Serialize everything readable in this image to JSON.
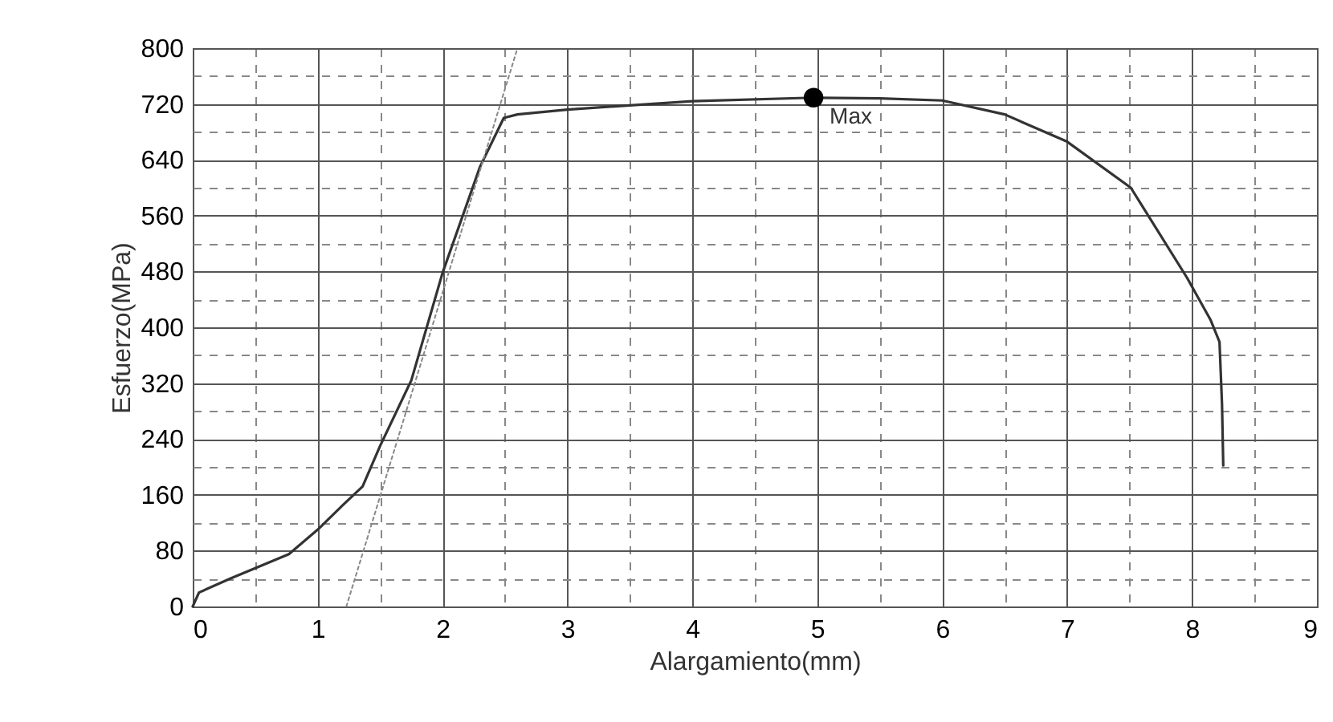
{
  "chart_data": {
    "type": "line",
    "xlabel": "Alargamiento(mm)",
    "ylabel": "Esfuerzo(MPa)",
    "xlim": [
      0,
      9
    ],
    "ylim": [
      0,
      800
    ],
    "xticks": [
      0,
      {
        "value": 0.5,
        "label": null
      },
      1,
      {
        "value": 1.5,
        "label": null
      },
      2,
      {
        "value": 2.5,
        "label": null
      },
      3,
      {
        "value": 3.5,
        "label": null
      },
      4,
      {
        "value": 4.5,
        "label": null
      },
      5,
      {
        "value": 5.5,
        "label": null
      },
      6,
      {
        "value": 6.5,
        "label": null
      },
      7,
      {
        "value": 7.5,
        "label": null
      },
      8,
      {
        "value": 8.5,
        "label": null
      },
      9
    ],
    "yticks": [
      0,
      {
        "value": 40,
        "label": null
      },
      80,
      {
        "value": 120,
        "label": null
      },
      160,
      {
        "value": 200,
        "label": null
      },
      240,
      {
        "value": 280,
        "label": null
      },
      320,
      {
        "value": 360,
        "label": null
      },
      400,
      {
        "value": 440,
        "label": null
      },
      480,
      {
        "value": 520,
        "label": null
      },
      560,
      {
        "value": 600,
        "label": null
      },
      640,
      {
        "value": 680,
        "label": null
      },
      720,
      {
        "value": 760,
        "label": null
      },
      800
    ],
    "grid": true,
    "series": [
      {
        "color": "#333333",
        "line_style": "solid",
        "x": [
          0,
          0.05,
          0.3,
          0.77,
          1.0,
          1.2,
          1.36,
          1.5,
          1.75,
          2.0,
          2.3,
          2.49,
          2.6,
          3.0,
          4.0,
          4.97,
          5.5,
          6.0,
          6.5,
          7.0,
          7.51,
          7.96,
          8.15,
          8.22,
          8.24,
          8.25
        ],
        "values": [
          0,
          20,
          40,
          75,
          110,
          145,
          172,
          230,
          324,
          478,
          630,
          700,
          705,
          712,
          724,
          729,
          728,
          725,
          705,
          666,
          600,
          471,
          410,
          379,
          290,
          202
        ]
      },
      {
        "type": "line",
        "color": "#888888",
        "line_style": "dotted",
        "x": [
          1.23,
          2.6
        ],
        "values": [
          0,
          800
        ]
      },
      {
        "type": "scatter",
        "color": "#000000",
        "marker": "circle",
        "x": [
          4.97
        ],
        "values": [
          729
        ]
      }
    ],
    "annotations": [
      {
        "text": "Max",
        "x": 4.97,
        "y": 729
      }
    ]
  }
}
